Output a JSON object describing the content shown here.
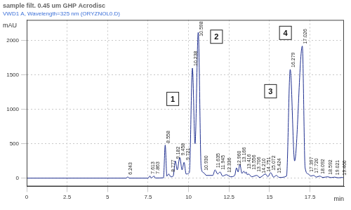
{
  "chart_data": {
    "type": "line",
    "title": "sample filt. 0.45 um GHP Acrodisc",
    "subtitle": "VWD1 A, Wavelength=325 nm (ORYZNOL0.D)",
    "x_label": "min",
    "y_label": "mAU",
    "color": "#1f2f8f",
    "grid": true,
    "xlim": [
      0,
      19.6
    ],
    "xticks": [
      0,
      2.5,
      5,
      7.5,
      10,
      12.5,
      15,
      17.5
    ],
    "ylim": [
      -120,
      2300
    ],
    "yticks": [
      0,
      500,
      1000,
      1500,
      2000
    ],
    "x": [
      0,
      6.15,
      6.243,
      6.33,
      7.5,
      7.613,
      7.7,
      7.863,
      7.95,
      8.45,
      8.558,
      8.66,
      8.777,
      8.9,
      9.05,
      9.182,
      9.3,
      9.458,
      9.6,
      9.721,
      9.85,
      10.05,
      10.238,
      10.4,
      10.598,
      10.78,
      10.93,
      11.1,
      11.5,
      11.635,
      11.8,
      11.945,
      12.1,
      12.336,
      12.6,
      12.85,
      12.96,
      13.06,
      13.166,
      13.3,
      13.416,
      13.5,
      13.556,
      13.63,
      13.706,
      13.9,
      14.21,
      14.4,
      14.751,
      14.9,
      15.072,
      15.25,
      15.424,
      15.6,
      16.05,
      16.279,
      16.55,
      17.026,
      17.2,
      17.397,
      17.55,
      17.72,
      17.9,
      18.092,
      18.3,
      18.592,
      18.8,
      19.021,
      19.25,
      19.466,
      19.6
    ],
    "values": [
      0,
      0,
      20,
      0,
      0,
      30,
      2,
      30,
      2,
      5,
      480,
      30,
      60,
      20,
      30,
      250,
      120,
      300,
      120,
      230,
      60,
      80,
      1600,
      500,
      2120,
      150,
      80,
      40,
      40,
      120,
      60,
      90,
      30,
      50,
      20,
      40,
      150,
      90,
      200,
      70,
      100,
      70,
      90,
      50,
      60,
      20,
      40,
      10,
      60,
      20,
      80,
      15,
      40,
      10,
      30,
      1580,
      250,
      1920,
      150,
      60,
      30,
      40,
      15,
      30,
      10,
      20,
      8,
      15,
      5,
      10,
      5
    ],
    "peaks": [
      {
        "time": 6.243,
        "label": "6.243",
        "height": 20
      },
      {
        "time": 7.613,
        "label": "7.613",
        "height": 30
      },
      {
        "time": 7.863,
        "label": "7.863",
        "height": 30
      },
      {
        "time": 8.558,
        "label": "8.558",
        "height": 480
      },
      {
        "time": 8.777,
        "label": "8.777",
        "height": 60
      },
      {
        "time": 9.182,
        "label": "9.182",
        "height": 250
      },
      {
        "time": 9.458,
        "label": "9.458",
        "height": 300
      },
      {
        "time": 9.721,
        "label": "9.721",
        "height": 230
      },
      {
        "time": 10.238,
        "label": "10.238",
        "height": 1600,
        "tag": "1"
      },
      {
        "time": 10.598,
        "label": "10.598",
        "height": 2120,
        "tag": "2"
      },
      {
        "time": 10.93,
        "label": "10.930",
        "height": 80
      },
      {
        "time": 11.635,
        "label": "11.635",
        "height": 120
      },
      {
        "time": 11.945,
        "label": "11.945",
        "height": 90
      },
      {
        "time": 12.336,
        "label": "12.336",
        "height": 50
      },
      {
        "time": 12.96,
        "label": "12.960",
        "height": 150
      },
      {
        "time": 13.166,
        "label": "13.166",
        "height": 200
      },
      {
        "time": 13.416,
        "label": "13.416",
        "height": 100
      },
      {
        "time": 13.556,
        "label": "13.556",
        "height": 90
      },
      {
        "time": 13.706,
        "label": "13.706",
        "height": 60
      },
      {
        "time": 14.21,
        "label": "14.210",
        "height": 40
      },
      {
        "time": 14.751,
        "label": "14.751",
        "height": 60
      },
      {
        "time": 15.072,
        "label": "15.072",
        "height": 80
      },
      {
        "time": 15.424,
        "label": "15.424",
        "height": 40
      },
      {
        "time": 16.279,
        "label": "16.279",
        "height": 1580,
        "tag": "3"
      },
      {
        "time": 17.026,
        "label": "17.026",
        "height": 1920,
        "tag": "4"
      },
      {
        "time": 17.397,
        "label": "17.397",
        "height": 60
      },
      {
        "time": 17.72,
        "label": "17.720",
        "height": 40
      },
      {
        "time": 18.092,
        "label": "18.092",
        "height": 30
      },
      {
        "time": 18.592,
        "label": "18.592",
        "height": 20
      },
      {
        "time": 19.021,
        "label": "19.021",
        "height": 15
      },
      {
        "time": 19.466,
        "label": "19.466",
        "height": 10
      }
    ]
  }
}
